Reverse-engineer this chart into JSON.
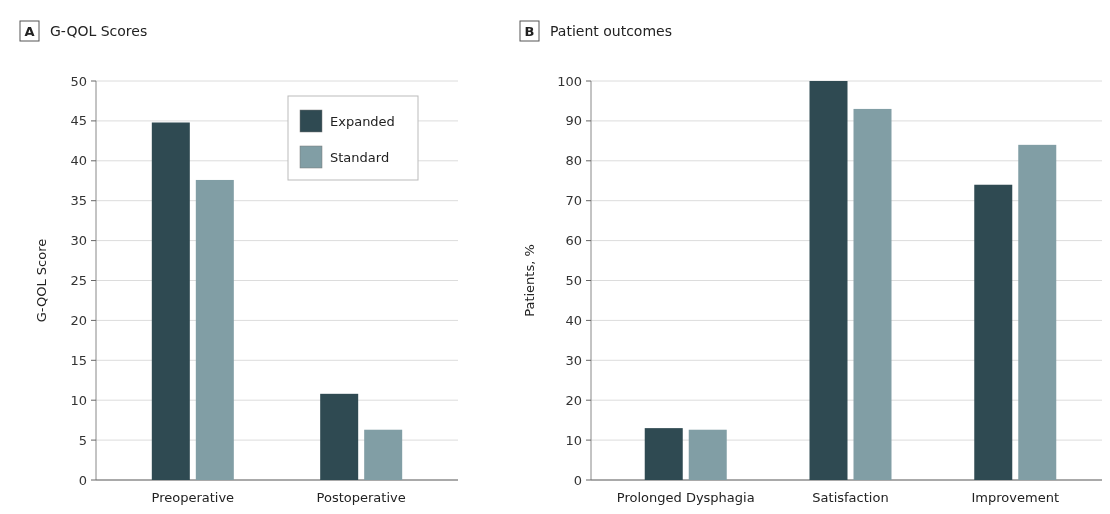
{
  "chart_data": [
    {
      "type": "bar",
      "title": "G-QOL Scores",
      "annotations": [
        "A"
      ],
      "ylabel": "G-QOL Score",
      "categories": [
        "Preoperative",
        "Postoperative"
      ],
      "series": [
        {
          "name": "Expanded",
          "color": "#2f4a52",
          "values": [
            44.8,
            10.8
          ]
        },
        {
          "name": "Standard",
          "color": "#819ea5",
          "values": [
            37.6,
            6.3
          ]
        }
      ],
      "ylim": [
        0,
        50
      ],
      "yticks": [
        0,
        5,
        10,
        15,
        20,
        25,
        30,
        35,
        40,
        45,
        50
      ],
      "grid": "y",
      "legend": "top right"
    },
    {
      "type": "bar",
      "title": "Patient outcomes",
      "annotations": [
        "B"
      ],
      "ylabel": "Patients, %",
      "categories": [
        "Prolonged Dysphagia",
        "Satisfaction",
        "Improvement"
      ],
      "series": [
        {
          "color": "#2f4a52",
          "values": [
            13,
            100,
            74
          ]
        },
        {
          "color": "#819ea5",
          "values": [
            12.6,
            93,
            84
          ]
        }
      ],
      "ylim": [
        0,
        100
      ],
      "yticks": [
        0,
        10,
        20,
        30,
        40,
        50,
        60,
        70,
        80,
        90,
        100
      ],
      "grid": "y",
      "legend": false
    }
  ]
}
